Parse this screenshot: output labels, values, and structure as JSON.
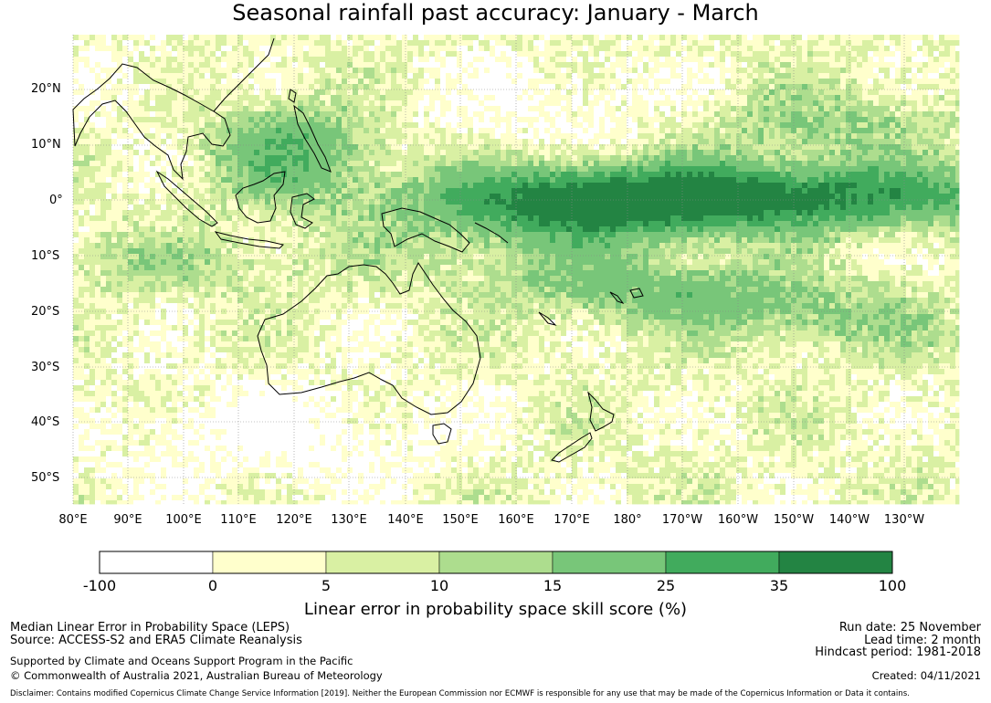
{
  "title": "Seasonal rainfall past accuracy: January - March",
  "map": {
    "latitude_labels": [
      "20°N",
      "10°N",
      "0°",
      "10°S",
      "20°S",
      "30°S",
      "40°S",
      "50°S"
    ],
    "longitude_labels": [
      "80°E",
      "90°E",
      "100°E",
      "110°E",
      "120°E",
      "130°E",
      "140°E",
      "150°E",
      "160°E",
      "170°E",
      "180°",
      "170°W",
      "160°W",
      "150°W",
      "140°W",
      "130°W"
    ]
  },
  "legend": {
    "ticks": [
      "-100",
      "0",
      "5",
      "10",
      "15",
      "25",
      "35",
      "100"
    ],
    "colors": [
      "#ffffff",
      "#ffffcc",
      "#d9f0a3",
      "#addd8e",
      "#78c679",
      "#41ab5d",
      "#238443"
    ],
    "label": "Linear error in probability space skill score (%)"
  },
  "info": {
    "metric": "Median Linear Error in Probability Space (LEPS)",
    "source": "Source: ACCESS-S2 and ERA5 Climate Reanalysis",
    "support": "Supported by Climate and Oceans Support Program in the Pacific",
    "copyright": "© Commonwealth of Australia 2021, Australian Bureau of Meteorology",
    "run_date": "Run date: 25 November",
    "lead_time": "Lead time: 2 month",
    "hindcast": "Hindcast period: 1981-2018",
    "created": "Created: 04/11/2021",
    "disclaimer": "Disclaimer: Contains modified Copernicus Climate Change Service Information [2019]. Neither the European Commission nor ECMWF is responsible for any use that may be made of the Copernicus Information or Data it contains."
  }
}
